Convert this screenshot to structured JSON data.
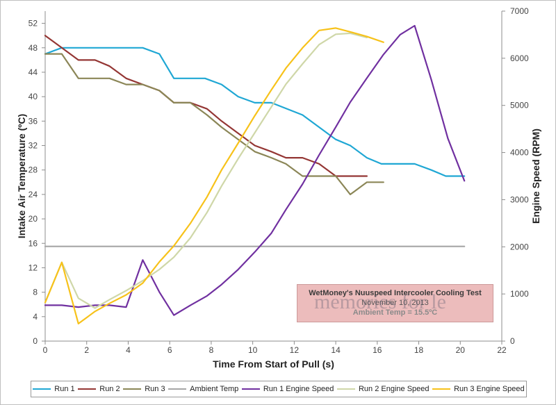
{
  "chart_data": {
    "type": "line",
    "xlabel": "Time From Start of Pull (s)",
    "ylabel_left": "Intake Air Temperature (ºC)",
    "ylabel_right": "Engine Speed (RPM)",
    "xlim": [
      0,
      22
    ],
    "ylim_left": [
      0,
      54
    ],
    "ylim_right": [
      0,
      7000
    ],
    "x_ticks": [
      0,
      2,
      4,
      6,
      8,
      10,
      12,
      14,
      16,
      18,
      20,
      22
    ],
    "y_left_ticks": [
      0,
      4,
      8,
      12,
      16,
      20,
      24,
      28,
      32,
      36,
      40,
      44,
      48,
      52
    ],
    "y_right_ticks": [
      0,
      1000,
      2000,
      3000,
      4000,
      5000,
      6000,
      7000
    ],
    "grid": false,
    "legend_position": "bottom",
    "series": [
      {
        "name": "Run 1",
        "axis": "left",
        "color": "#1fa7d4",
        "points": [
          [
            0,
            47
          ],
          [
            0.8,
            48
          ],
          [
            4.7,
            48
          ],
          [
            5.5,
            47
          ],
          [
            6.2,
            43
          ],
          [
            7.7,
            43
          ],
          [
            8.5,
            42
          ],
          [
            9.3,
            40
          ],
          [
            10.1,
            39
          ],
          [
            10.9,
            39
          ],
          [
            12.4,
            37
          ],
          [
            13.2,
            35
          ],
          [
            14.0,
            33
          ],
          [
            14.7,
            32
          ],
          [
            15.5,
            30
          ],
          [
            16.2,
            29
          ],
          [
            17.8,
            29
          ],
          [
            18.6,
            28
          ],
          [
            19.3,
            27
          ],
          [
            20.2,
            27
          ]
        ]
      },
      {
        "name": "Run 2",
        "axis": "left",
        "color": "#943634",
        "points": [
          [
            0,
            50
          ],
          [
            0.8,
            48
          ],
          [
            1.6,
            46
          ],
          [
            2.4,
            46
          ],
          [
            3.1,
            45
          ],
          [
            3.9,
            43
          ],
          [
            4.7,
            42
          ],
          [
            5.5,
            41
          ],
          [
            6.2,
            39
          ],
          [
            7.0,
            39
          ],
          [
            7.8,
            38
          ],
          [
            8.5,
            36
          ],
          [
            9.3,
            34
          ],
          [
            10.1,
            32
          ],
          [
            10.9,
            31
          ],
          [
            11.6,
            30
          ],
          [
            12.4,
            30
          ],
          [
            13.2,
            29
          ],
          [
            14.0,
            27
          ],
          [
            14.7,
            27
          ],
          [
            15.5,
            27
          ]
        ]
      },
      {
        "name": "Run 3",
        "axis": "left",
        "color": "#8b8657",
        "points": [
          [
            0,
            47
          ],
          [
            0.8,
            47
          ],
          [
            1.6,
            43
          ],
          [
            2.4,
            43
          ],
          [
            3.1,
            43
          ],
          [
            3.9,
            42
          ],
          [
            4.7,
            42
          ],
          [
            5.5,
            41
          ],
          [
            6.2,
            39
          ],
          [
            7.0,
            39
          ],
          [
            7.8,
            37
          ],
          [
            8.5,
            35
          ],
          [
            9.3,
            33
          ],
          [
            10.1,
            31
          ],
          [
            10.9,
            30
          ],
          [
            11.6,
            29
          ],
          [
            12.4,
            27
          ],
          [
            13.2,
            27
          ],
          [
            14.0,
            27
          ],
          [
            14.7,
            24
          ],
          [
            15.5,
            26
          ],
          [
            16.3,
            26
          ]
        ]
      },
      {
        "name": "Ambient Temp",
        "axis": "left",
        "color": "#a6a6a6",
        "points": [
          [
            0,
            15.5
          ],
          [
            20.2,
            15.5
          ]
        ]
      },
      {
        "name": "Run 1 Engine Speed",
        "axis": "right",
        "color": "#7030a0",
        "points": [
          [
            0,
            760
          ],
          [
            0.8,
            760
          ],
          [
            1.6,
            720
          ],
          [
            2.4,
            760
          ],
          [
            3.1,
            760
          ],
          [
            3.9,
            720
          ],
          [
            4.7,
            1720
          ],
          [
            5.5,
            1040
          ],
          [
            6.2,
            550
          ],
          [
            7.0,
            760
          ],
          [
            7.8,
            960
          ],
          [
            8.5,
            1200
          ],
          [
            9.3,
            1520
          ],
          [
            10.1,
            1890
          ],
          [
            10.9,
            2290
          ],
          [
            11.6,
            2790
          ],
          [
            12.4,
            3330
          ],
          [
            13.2,
            3950
          ],
          [
            14.0,
            4540
          ],
          [
            14.7,
            5070
          ],
          [
            15.5,
            5580
          ],
          [
            16.3,
            6080
          ],
          [
            17.1,
            6500
          ],
          [
            17.8,
            6690
          ],
          [
            18.6,
            5550
          ],
          [
            19.4,
            4300
          ],
          [
            20.2,
            3400
          ]
        ]
      },
      {
        "name": "Run 2 Engine Speed",
        "axis": "right",
        "color": "#cfd7a8",
        "points": [
          [
            0,
            820
          ],
          [
            0.8,
            1670
          ],
          [
            1.6,
            910
          ],
          [
            2.4,
            700
          ],
          [
            3.1,
            880
          ],
          [
            3.9,
            1070
          ],
          [
            4.7,
            1280
          ],
          [
            5.5,
            1520
          ],
          [
            6.2,
            1780
          ],
          [
            7.0,
            2190
          ],
          [
            7.8,
            2730
          ],
          [
            8.5,
            3290
          ],
          [
            9.3,
            3870
          ],
          [
            10.1,
            4420
          ],
          [
            10.9,
            4970
          ],
          [
            11.6,
            5450
          ],
          [
            12.4,
            5880
          ],
          [
            13.2,
            6290
          ],
          [
            14.0,
            6510
          ],
          [
            14.7,
            6530
          ],
          [
            15.5,
            6440
          ]
        ]
      },
      {
        "name": "Run 3 Engine Speed",
        "axis": "right",
        "color": "#f7c21a",
        "points": [
          [
            0,
            820
          ],
          [
            0.8,
            1670
          ],
          [
            1.6,
            370
          ],
          [
            2.4,
            630
          ],
          [
            3.1,
            800
          ],
          [
            3.9,
            980
          ],
          [
            4.7,
            1230
          ],
          [
            5.5,
            1680
          ],
          [
            6.2,
            2020
          ],
          [
            7.0,
            2500
          ],
          [
            7.8,
            3060
          ],
          [
            8.5,
            3630
          ],
          [
            9.3,
            4200
          ],
          [
            10.1,
            4780
          ],
          [
            10.9,
            5330
          ],
          [
            11.6,
            5790
          ],
          [
            12.4,
            6220
          ],
          [
            13.2,
            6590
          ],
          [
            14.0,
            6640
          ],
          [
            14.7,
            6560
          ],
          [
            15.5,
            6460
          ],
          [
            16.3,
            6340
          ]
        ]
      }
    ]
  },
  "note": {
    "line1": "WetMoney's Nuuspeed Intercooler Cooling Test",
    "line2": "November 10, 2013",
    "line3": "Ambient Temp = 15.5ºC"
  },
  "watermark": "memories for le"
}
